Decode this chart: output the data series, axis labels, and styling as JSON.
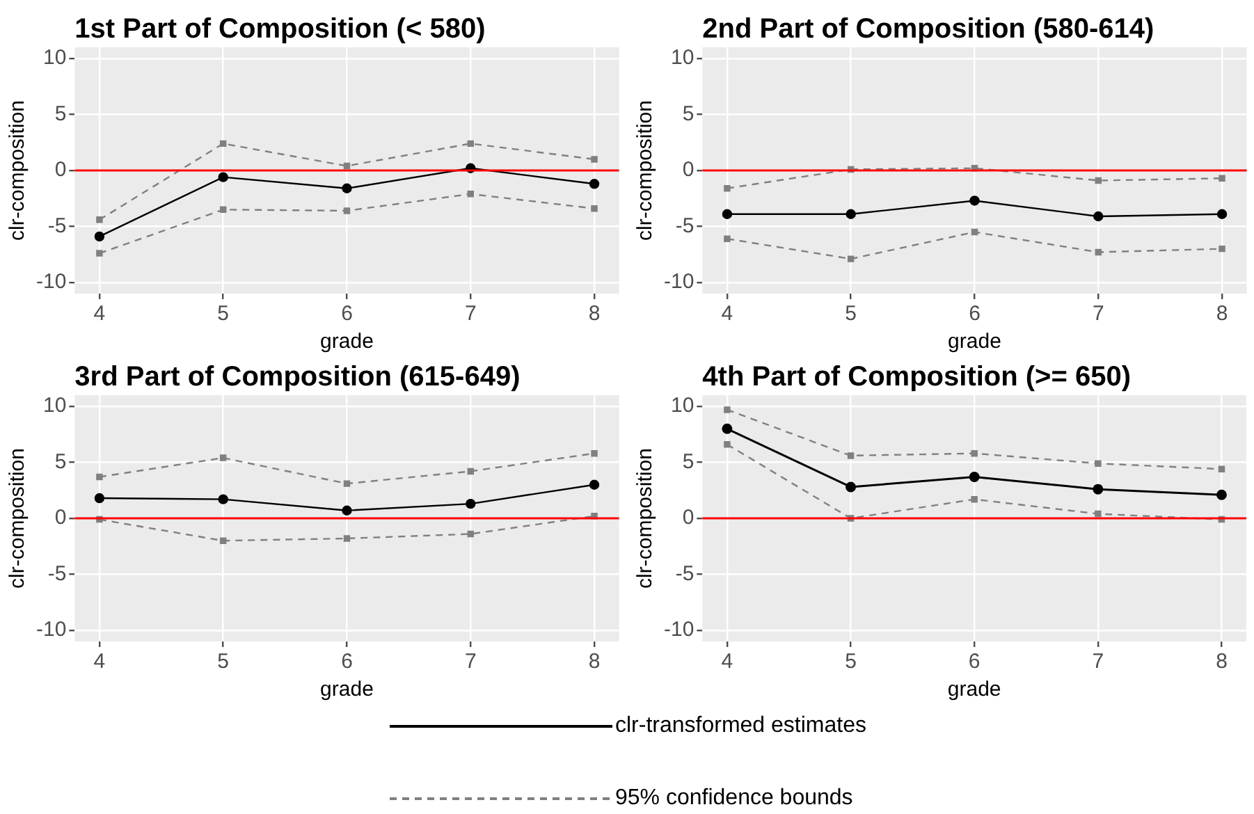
{
  "chart_data": [
    {
      "type": "line",
      "title": "1st Part of Composition (< 580)",
      "xlabel": "grade",
      "ylabel": "clr-composition",
      "x": [
        4,
        5,
        6,
        7,
        8
      ],
      "xlim": [
        3.8,
        8.2
      ],
      "xticks": [
        4,
        5,
        6,
        7,
        8
      ],
      "ylim": [
        -11,
        11
      ],
      "yticks": [
        -10,
        -5,
        0,
        5,
        10
      ],
      "grid": true,
      "ref_lines": [
        {
          "axis": "y",
          "value": 0,
          "color": "#ff0000"
        }
      ],
      "series": [
        {
          "color": "#000000",
          "marker": "circle",
          "line_style": "solid",
          "values": [
            -5.9,
            -0.6,
            -1.6,
            0.2,
            -1.2
          ]
        },
        {
          "color": "#808080",
          "marker": "square",
          "line_style": "dashed",
          "values": [
            -4.4,
            2.4,
            0.4,
            2.4,
            1.0
          ]
        },
        {
          "color": "#808080",
          "marker": "square",
          "line_style": "dashed",
          "values": [
            -7.4,
            -3.5,
            -3.6,
            -2.1,
            -3.4
          ]
        }
      ]
    },
    {
      "type": "line",
      "title": "2nd Part of Composition (580-614)",
      "xlabel": "grade",
      "ylabel": "clr-composition",
      "x": [
        4,
        5,
        6,
        7,
        8
      ],
      "xlim": [
        3.8,
        8.2
      ],
      "xticks": [
        4,
        5,
        6,
        7,
        8
      ],
      "ylim": [
        -11,
        11
      ],
      "yticks": [
        -10,
        -5,
        0,
        5,
        10
      ],
      "grid": true,
      "ref_lines": [
        {
          "axis": "y",
          "value": 0,
          "color": "#ff0000"
        }
      ],
      "series": [
        {
          "color": "#000000",
          "marker": "circle",
          "line_style": "solid",
          "values": [
            -3.9,
            -3.9,
            -2.7,
            -4.1,
            -3.9
          ]
        },
        {
          "color": "#808080",
          "marker": "square",
          "line_style": "dashed",
          "values": [
            -1.6,
            0.1,
            0.2,
            -0.9,
            -0.7
          ]
        },
        {
          "color": "#808080",
          "marker": "square",
          "line_style": "dashed",
          "values": [
            -6.1,
            -7.9,
            -5.5,
            -7.3,
            -7.0
          ]
        }
      ]
    },
    {
      "type": "line",
      "title": "3rd Part of Composition (615-649)",
      "xlabel": "grade",
      "ylabel": "clr-composition",
      "x": [
        4,
        5,
        6,
        7,
        8
      ],
      "xlim": [
        3.8,
        8.2
      ],
      "xticks": [
        4,
        5,
        6,
        7,
        8
      ],
      "ylim": [
        -11,
        11
      ],
      "yticks": [
        -10,
        -5,
        0,
        5,
        10
      ],
      "grid": true,
      "ref_lines": [
        {
          "axis": "y",
          "value": 0,
          "color": "#ff0000"
        }
      ],
      "series": [
        {
          "color": "#000000",
          "marker": "circle",
          "line_style": "solid",
          "values": [
            1.8,
            1.7,
            0.7,
            1.3,
            3.0
          ]
        },
        {
          "color": "#808080",
          "marker": "square",
          "line_style": "dashed",
          "values": [
            3.7,
            5.4,
            3.1,
            4.2,
            5.8
          ]
        },
        {
          "color": "#808080",
          "marker": "square",
          "line_style": "dashed",
          "values": [
            -0.1,
            -2.0,
            -1.8,
            -1.4,
            0.2
          ]
        }
      ]
    },
    {
      "type": "line",
      "title": "4th Part of Composition (>= 650)",
      "xlabel": "grade",
      "ylabel": "clr-composition",
      "x": [
        4,
        5,
        6,
        7,
        8
      ],
      "xlim": [
        3.8,
        8.2
      ],
      "xticks": [
        4,
        5,
        6,
        7,
        8
      ],
      "ylim": [
        -11,
        11
      ],
      "yticks": [
        -10,
        -5,
        0,
        5,
        10
      ],
      "grid": true,
      "legend": "bottom",
      "ref_lines": [
        {
          "axis": "y",
          "value": 0,
          "color": "#ff0000"
        }
      ],
      "series": [
        {
          "name": "clr-transformed estimates",
          "color": "#000000",
          "marker": "circle",
          "line_style": "solid",
          "values": [
            8.0,
            2.8,
            3.7,
            2.6,
            2.1
          ]
        },
        {
          "name": "95% confidence bounds",
          "color": "#808080",
          "marker": "square",
          "line_style": "dashed",
          "values": [
            9.7,
            5.6,
            5.8,
            4.9,
            4.4
          ]
        },
        {
          "color": "#808080",
          "marker": "square",
          "line_style": "dashed",
          "values": [
            6.6,
            0.0,
            1.7,
            0.4,
            -0.1
          ]
        }
      ]
    }
  ]
}
